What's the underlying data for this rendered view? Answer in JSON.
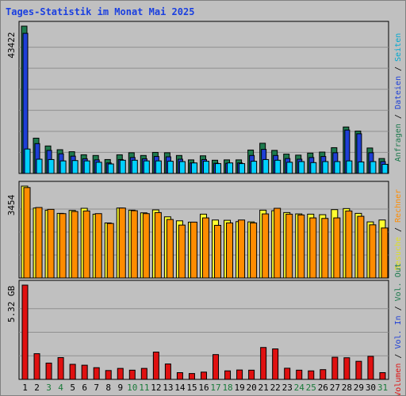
{
  "chart_data": {
    "type": "bar",
    "title": "Tages-Statistik im Monat Mai 2025",
    "categories": [
      "1",
      "2",
      "3",
      "4",
      "5",
      "6",
      "7",
      "8",
      "9",
      "10",
      "11",
      "12",
      "13",
      "14",
      "15",
      "16",
      "17",
      "18",
      "19",
      "20",
      "21",
      "22",
      "23",
      "24",
      "25",
      "26",
      "27",
      "28",
      "29",
      "30",
      "31"
    ],
    "weekend_days": [
      "3",
      "4",
      "10",
      "11",
      "17",
      "18",
      "24",
      "25",
      "31"
    ],
    "colors": {
      "anfragen": "#1e7a4e",
      "dateien": "#1e3fd6",
      "seiten": "#00d0ff",
      "besuche": "#ffff30",
      "rechner": "#ff8c00",
      "volumen": "#e01010",
      "weekday_label": "#000000",
      "weekend_label": "#1a7a3a"
    },
    "panels": [
      {
        "name": "anfragen-dateien-seiten",
        "ymax": 43422,
        "ytick_label": "43422",
        "series": [
          {
            "name": "Anfragen",
            "color": "#1e7a4e",
            "values": [
              43422,
              10400,
              8100,
              7000,
              6400,
              5500,
              5300,
              4100,
              5500,
              6100,
              5300,
              6200,
              6100,
              5300,
              4000,
              5200,
              3900,
              4000,
              4000,
              6900,
              8900,
              6800,
              5700,
              5400,
              6000,
              6300,
              7600,
              13700,
              12500,
              7500,
              4400
            ]
          },
          {
            "name": "Dateien",
            "color": "#1e3fd6",
            "values": [
              41300,
              8800,
              6800,
              5800,
              5100,
              4300,
              4000,
              3100,
              4100,
              4700,
              4300,
              5000,
              4900,
              4200,
              3100,
              4100,
              3000,
              3000,
              3100,
              5300,
              7100,
              5300,
              4400,
              4200,
              4700,
              5000,
              6100,
              12800,
              11700,
              6100,
              3500
            ]
          },
          {
            "name": "Seiten",
            "color": "#00d0ff",
            "values": [
              7200,
              4200,
              4100,
              3700,
              3800,
              3700,
              3300,
              2800,
              3900,
              3900,
              3700,
              3700,
              3600,
              3500,
              3100,
              3600,
              2900,
              3100,
              2900,
              3600,
              4100,
              3900,
              3300,
              3500,
              3200,
              3500,
              3500,
              3700,
              3400,
              3500,
              2700
            ]
          }
        ],
        "axis_label_parts": [
          "Anfragen",
          "Dateien",
          "Seiten"
        ]
      },
      {
        "name": "besuche-rechner",
        "ymax": 3454,
        "ytick_label": "3454",
        "series": [
          {
            "name": "Besuche",
            "color": "#ffff30",
            "values": [
              3454,
              2630,
              2550,
              2430,
              2540,
              2620,
              2400,
              2070,
              2630,
              2550,
              2450,
              2560,
              2300,
              2150,
              2100,
              2400,
              2180,
              2170,
              2120,
              2110,
              2550,
              2530,
              2460,
              2410,
              2400,
              2380,
              2570,
              2610,
              2430,
              2110,
              2180
            ]
          },
          {
            "name": "Rechner",
            "color": "#ff8c00",
            "values": [
              3400,
              2650,
              2580,
              2420,
              2500,
              2520,
              2420,
              2050,
              2630,
              2530,
              2420,
              2460,
              2200,
              1990,
              2100,
              2260,
              1980,
              2070,
              2180,
              2070,
              2410,
              2620,
              2400,
              2370,
              2260,
              2240,
              2260,
              2520,
              2320,
              2000,
              1880
            ]
          }
        ],
        "axis_label_parts": [
          "Besuche",
          "Rechner"
        ]
      },
      {
        "name": "volumen",
        "ymax": 5.32,
        "ytick_label": "5.32 GB",
        "series": [
          {
            "name": "Volumen",
            "color": "#e01010",
            "values": [
              5.32,
              1.45,
              0.92,
              1.23,
              0.85,
              0.8,
              0.66,
              0.5,
              0.62,
              0.52,
              0.62,
              1.54,
              0.87,
              0.38,
              0.33,
              0.41,
              1.4,
              0.48,
              0.53,
              0.52,
              1.8,
              1.72,
              0.63,
              0.52,
              0.48,
              0.55,
              1.25,
              1.22,
              1.02,
              1.3,
              0.38
            ]
          }
        ],
        "axis_label_parts": [
          "Volumen",
          "Vol. In",
          "Vol. Out"
        ]
      }
    ],
    "axis_label_colors": {
      "Anfragen": "#1e7a4e",
      "Dateien": "#1e3fd6",
      "Seiten": "#00a8d0",
      "Besuche": "#e0e020",
      "Rechner": "#ff8c00",
      "Volumen": "#e01010",
      "Vol. In": "#1e3fd6",
      "Vol. Out": "#1e7a4e"
    },
    "axis_label_separator": " / "
  }
}
